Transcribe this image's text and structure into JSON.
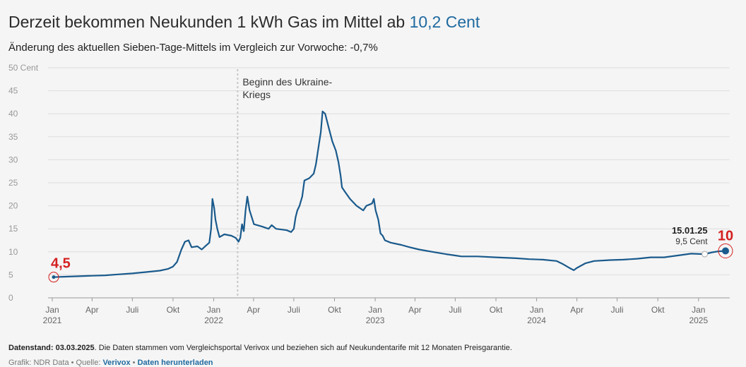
{
  "header": {
    "title_prefix": "Derzeit bekommen Neukunden 1 kWh Gas im Mittel ab",
    "title_value": "10,2 Cent",
    "subtitle": "Änderung des aktuellen Sieben-Tage-Mittels im Vergleich zur Vorwoche: -0,7%"
  },
  "footer": {
    "stand_label": "Datenstand: 03.03.2025",
    "stand_text": ". Die Daten stammen vom Vergleichsportal Verivox und beziehen sich auf Neukundentarife mit 12 Monaten Preisgarantie.",
    "credit_prefix": "Grafik: NDR Data • Quelle: ",
    "source_link": "Verivox",
    "separator": " • ",
    "download_link": "Daten herunterladen"
  },
  "colors": {
    "line": "#1a5a8c",
    "accent": "#1f6aa0",
    "annotation_red": "#d42020",
    "grid": "#dddddd"
  },
  "chart_data": {
    "type": "line",
    "ylabel": "Cent",
    "ylim": [
      0,
      50
    ],
    "yticks": [
      0,
      5,
      10,
      15,
      20,
      25,
      30,
      35,
      40,
      45,
      50
    ],
    "ytick_labels": [
      "0",
      "5",
      "10",
      "15",
      "20",
      "25",
      "30",
      "35",
      "40",
      "45",
      "50 Cent"
    ],
    "xlim": [
      "2021-01-01",
      "2025-03-03"
    ],
    "xticks": [
      {
        "date": "2021-01-01",
        "label": "Jan",
        "year": "2021"
      },
      {
        "date": "2021-04-01",
        "label": "Apr",
        "year": ""
      },
      {
        "date": "2021-07-01",
        "label": "Juli",
        "year": ""
      },
      {
        "date": "2021-10-01",
        "label": "Okt",
        "year": ""
      },
      {
        "date": "2022-01-01",
        "label": "Jan",
        "year": "2022"
      },
      {
        "date": "2022-04-01",
        "label": "Apr",
        "year": ""
      },
      {
        "date": "2022-07-01",
        "label": "Juli",
        "year": ""
      },
      {
        "date": "2022-10-01",
        "label": "Okt",
        "year": ""
      },
      {
        "date": "2023-01-01",
        "label": "Jan",
        "year": "2023"
      },
      {
        "date": "2023-04-01",
        "label": "Apr",
        "year": ""
      },
      {
        "date": "2023-07-01",
        "label": "Juli",
        "year": ""
      },
      {
        "date": "2023-10-01",
        "label": "Okt",
        "year": ""
      },
      {
        "date": "2024-01-01",
        "label": "Jan",
        "year": "2024"
      },
      {
        "date": "2024-04-01",
        "label": "Apr",
        "year": ""
      },
      {
        "date": "2024-07-01",
        "label": "Juli",
        "year": ""
      },
      {
        "date": "2024-10-01",
        "label": "Okt",
        "year": ""
      },
      {
        "date": "2025-01-01",
        "label": "Jan",
        "year": "2025"
      }
    ],
    "grid": true,
    "series": [
      {
        "points": [
          [
            "2021-01-01",
            4.5
          ],
          [
            "2021-02-01",
            4.6
          ],
          [
            "2021-03-01",
            4.7
          ],
          [
            "2021-04-01",
            4.8
          ],
          [
            "2021-05-01",
            4.9
          ],
          [
            "2021-06-01",
            5.1
          ],
          [
            "2021-07-01",
            5.3
          ],
          [
            "2021-08-01",
            5.6
          ],
          [
            "2021-09-01",
            5.9
          ],
          [
            "2021-09-20",
            6.3
          ],
          [
            "2021-10-01",
            6.8
          ],
          [
            "2021-10-10",
            7.8
          ],
          [
            "2021-10-20",
            10.5
          ],
          [
            "2021-10-28",
            12.2
          ],
          [
            "2021-11-05",
            12.5
          ],
          [
            "2021-11-12",
            11.0
          ],
          [
            "2021-11-25",
            11.2
          ],
          [
            "2021-12-05",
            10.5
          ],
          [
            "2021-12-15",
            11.4
          ],
          [
            "2021-12-22",
            12.0
          ],
          [
            "2021-12-26",
            15.0
          ],
          [
            "2021-12-29",
            21.5
          ],
          [
            "2022-01-02",
            19.5
          ],
          [
            "2022-01-05",
            17.0
          ],
          [
            "2022-01-09",
            15.0
          ],
          [
            "2022-01-14",
            13.2
          ],
          [
            "2022-01-25",
            13.8
          ],
          [
            "2022-02-10",
            13.5
          ],
          [
            "2022-02-20",
            13.0
          ],
          [
            "2022-02-26",
            12.2
          ],
          [
            "2022-03-02",
            13.0
          ],
          [
            "2022-03-06",
            16.0
          ],
          [
            "2022-03-10",
            14.5
          ],
          [
            "2022-03-14",
            19.0
          ],
          [
            "2022-03-18",
            22.0
          ],
          [
            "2022-03-23",
            19.0
          ],
          [
            "2022-04-02",
            16.0
          ],
          [
            "2022-04-20",
            15.5
          ],
          [
            "2022-05-05",
            15.0
          ],
          [
            "2022-05-12",
            15.8
          ],
          [
            "2022-05-22",
            15.0
          ],
          [
            "2022-06-15",
            14.7
          ],
          [
            "2022-06-25",
            14.3
          ],
          [
            "2022-07-01",
            15.0
          ],
          [
            "2022-07-05",
            17.5
          ],
          [
            "2022-07-09",
            19.0
          ],
          [
            "2022-07-14",
            20.0
          ],
          [
            "2022-07-20",
            22.0
          ],
          [
            "2022-07-25",
            25.5
          ],
          [
            "2022-08-05",
            26.0
          ],
          [
            "2022-08-15",
            27.0
          ],
          [
            "2022-08-20",
            29.0
          ],
          [
            "2022-08-27",
            33.5
          ],
          [
            "2022-08-31",
            36.0
          ],
          [
            "2022-09-04",
            40.5
          ],
          [
            "2022-09-10",
            40.0
          ],
          [
            "2022-09-14",
            38.5
          ],
          [
            "2022-09-18",
            37.0
          ],
          [
            "2022-09-26",
            34.0
          ],
          [
            "2022-10-04",
            32.0
          ],
          [
            "2022-10-10",
            29.5
          ],
          [
            "2022-10-15",
            26.5
          ],
          [
            "2022-10-18",
            24.0
          ],
          [
            "2022-10-25",
            23.0
          ],
          [
            "2022-11-05",
            21.5
          ],
          [
            "2022-11-20",
            20.0
          ],
          [
            "2022-12-05",
            19.0
          ],
          [
            "2022-12-12",
            20.0
          ],
          [
            "2022-12-25",
            20.5
          ],
          [
            "2022-12-29",
            21.5
          ],
          [
            "2023-01-02",
            19.0
          ],
          [
            "2023-01-08",
            17.0
          ],
          [
            "2023-01-13",
            14.0
          ],
          [
            "2023-01-18",
            13.5
          ],
          [
            "2023-01-23",
            12.5
          ],
          [
            "2023-02-05",
            12.0
          ],
          [
            "2023-03-01",
            11.5
          ],
          [
            "2023-03-20",
            11.0
          ],
          [
            "2023-04-10",
            10.5
          ],
          [
            "2023-05-10",
            10.0
          ],
          [
            "2023-06-10",
            9.5
          ],
          [
            "2023-07-01",
            9.2
          ],
          [
            "2023-07-15",
            9.0
          ],
          [
            "2023-08-20",
            9.0
          ],
          [
            "2023-10-01",
            8.8
          ],
          [
            "2023-11-15",
            8.6
          ],
          [
            "2023-12-15",
            8.4
          ],
          [
            "2024-01-15",
            8.3
          ],
          [
            "2024-02-15",
            8.0
          ],
          [
            "2024-03-01",
            7.3
          ],
          [
            "2024-03-15",
            6.5
          ],
          [
            "2024-03-25",
            6.0
          ],
          [
            "2024-04-01",
            6.5
          ],
          [
            "2024-04-20",
            7.5
          ],
          [
            "2024-05-10",
            8.0
          ],
          [
            "2024-06-15",
            8.2
          ],
          [
            "2024-07-15",
            8.3
          ],
          [
            "2024-08-15",
            8.5
          ],
          [
            "2024-09-15",
            8.8
          ],
          [
            "2024-10-15",
            8.8
          ],
          [
            "2024-11-15",
            9.2
          ],
          [
            "2024-12-15",
            9.6
          ],
          [
            "2025-01-15",
            9.5
          ],
          [
            "2025-02-01",
            9.9
          ],
          [
            "2025-02-15",
            10.1
          ],
          [
            "2025-03-03",
            10.2
          ]
        ]
      }
    ],
    "annotations": {
      "event": {
        "date": "2022-02-24",
        "text_line1": "Beginn des Ukraine-",
        "text_line2": "Kriegs"
      },
      "start_marker": {
        "date": "2021-01-01",
        "value": 4.5,
        "label": "4,5"
      },
      "end_marker": {
        "date": "2025-03-03",
        "value": 10.2,
        "label": "10"
      },
      "highlight": {
        "date": "2025-01-15",
        "value": 9.5,
        "date_label": "15.01.25",
        "value_label": "9,5 Cent"
      }
    }
  }
}
